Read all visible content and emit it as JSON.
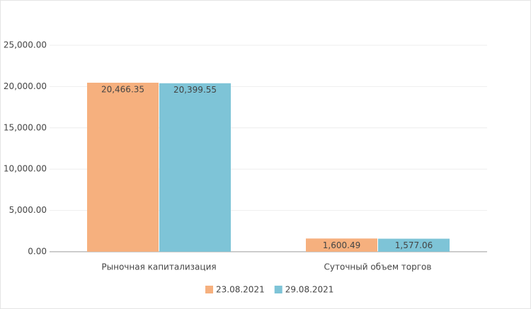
{
  "chart_data": {
    "type": "bar",
    "categories": [
      "Рыночная капитализация",
      "Суточный объем торгов"
    ],
    "series": [
      {
        "name": "23.08.2021",
        "color": "#f6b07e",
        "values": [
          20466.35,
          1600.49
        ],
        "value_labels": [
          "20,466.35",
          "1,600.49"
        ]
      },
      {
        "name": "29.08.2021",
        "color": "#7ec4d7",
        "values": [
          20399.55,
          1577.06
        ],
        "value_labels": [
          "20,399.55",
          "1,577.06"
        ]
      }
    ],
    "ylim": [
      0,
      25000
    ],
    "yticks": [
      {
        "value": 0,
        "label": "0.00"
      },
      {
        "value": 5000,
        "label": "5,000.00"
      },
      {
        "value": 10000,
        "label": "10,000.00"
      },
      {
        "value": 15000,
        "label": "15,000.00"
      },
      {
        "value": 20000,
        "label": "20,000.00"
      },
      {
        "value": 25000,
        "label": "25,000.00"
      }
    ],
    "grid": true,
    "legend": "bottom"
  }
}
